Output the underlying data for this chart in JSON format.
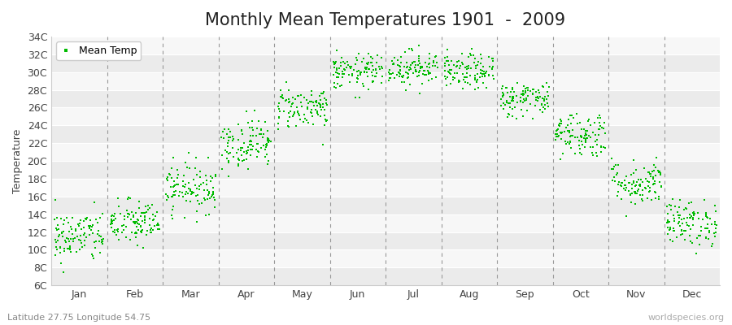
{
  "title": "Monthly Mean Temperatures 1901  -  2009",
  "ylabel": "Temperature",
  "subtitle": "Latitude 27.75 Longitude 54.75",
  "watermark": "worldspecies.org",
  "legend_label": "Mean Temp",
  "dot_color": "#00bb00",
  "dot_size": 3,
  "bg_color": "#ffffff",
  "plot_bg_color": "#f0f0f0",
  "band_color_light": "#f5f5f5",
  "band_color_dark": "#e8e8e8",
  "ylim": [
    6,
    34
  ],
  "yticks": [
    6,
    8,
    10,
    12,
    14,
    16,
    18,
    20,
    22,
    24,
    26,
    28,
    30,
    32,
    34
  ],
  "ytick_labels": [
    "6C",
    "8C",
    "10C",
    "12C",
    "14C",
    "16C",
    "18C",
    "20C",
    "22C",
    "24C",
    "26C",
    "28C",
    "30C",
    "32C",
    "34C"
  ],
  "months": [
    "Jan",
    "Feb",
    "Mar",
    "Apr",
    "May",
    "Jun",
    "Jul",
    "Aug",
    "Sep",
    "Oct",
    "Nov",
    "Dec"
  ],
  "num_years": 109,
  "seed": 42,
  "mean_temps": [
    11.5,
    13.0,
    17.0,
    22.0,
    26.0,
    30.0,
    30.5,
    30.0,
    27.0,
    23.0,
    17.5,
    13.0
  ],
  "std_temps": [
    1.5,
    1.3,
    1.4,
    1.4,
    1.2,
    1.0,
    1.0,
    1.0,
    1.0,
    1.3,
    1.3,
    1.3
  ],
  "title_fontsize": 15,
  "label_fontsize": 9,
  "tick_fontsize": 9,
  "dashed_color": "#999999",
  "subtitle_color": "#888888",
  "watermark_color": "#aaaaaa"
}
